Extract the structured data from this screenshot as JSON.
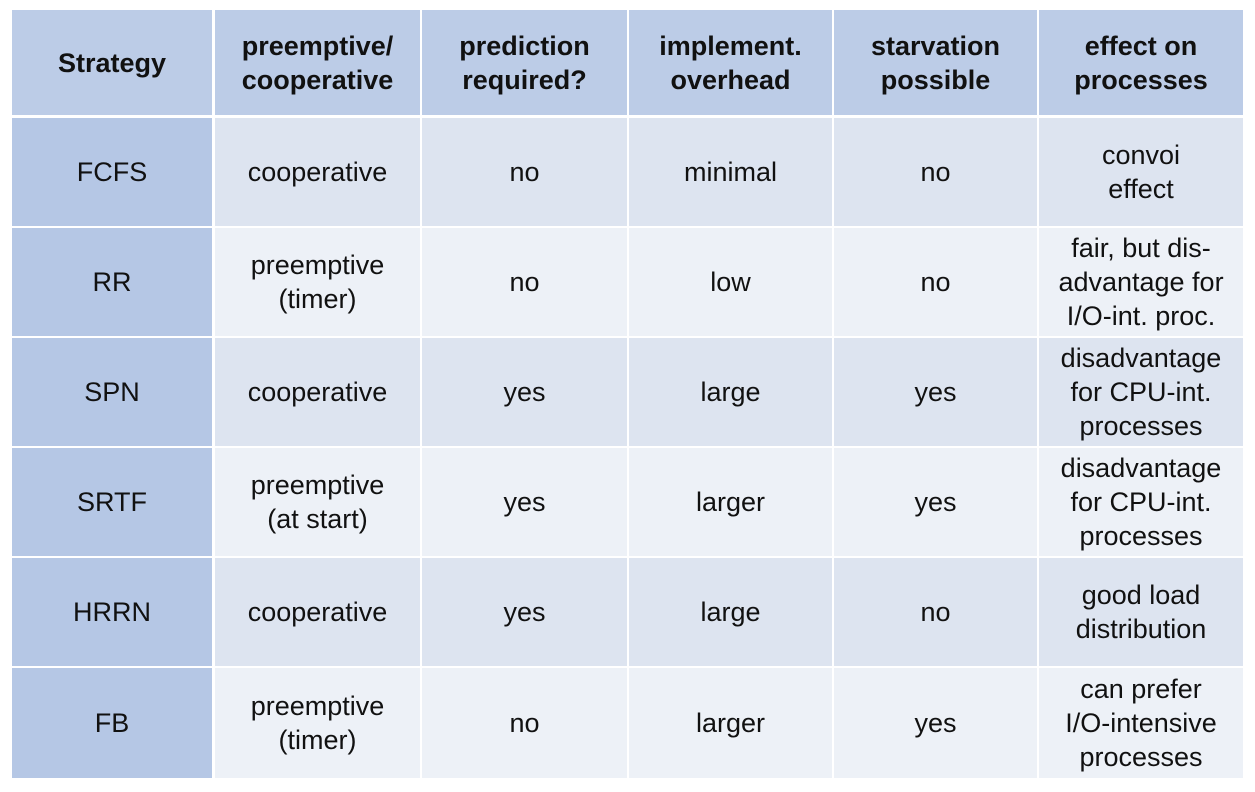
{
  "table": {
    "header": [
      [
        "Strategy"
      ],
      [
        "preemptive/",
        "cooperative"
      ],
      [
        "prediction",
        "required?"
      ],
      [
        "implement.",
        "overhead"
      ],
      [
        "starvation",
        "possible"
      ],
      [
        "effect on",
        "processes"
      ]
    ],
    "rows": [
      [
        [
          "FCFS"
        ],
        [
          "cooperative"
        ],
        [
          "no"
        ],
        [
          "minimal"
        ],
        [
          "no"
        ],
        [
          "convoi",
          "effect"
        ]
      ],
      [
        [
          "RR"
        ],
        [
          "preemptive",
          "(timer)"
        ],
        [
          "no"
        ],
        [
          "low"
        ],
        [
          "no"
        ],
        [
          "fair, but dis-",
          "advantage for",
          "I/O-int. proc."
        ]
      ],
      [
        [
          "SPN"
        ],
        [
          "cooperative"
        ],
        [
          "yes"
        ],
        [
          "large"
        ],
        [
          "yes"
        ],
        [
          "disadvantage",
          "for CPU-int.",
          "processes"
        ]
      ],
      [
        [
          "SRTF"
        ],
        [
          "preemptive",
          "(at start)"
        ],
        [
          "yes"
        ],
        [
          "larger"
        ],
        [
          "yes"
        ],
        [
          "disadvantage",
          "for CPU-int.",
          "processes"
        ]
      ],
      [
        [
          "HRRN"
        ],
        [
          "cooperative"
        ],
        [
          "yes"
        ],
        [
          "large"
        ],
        [
          "no"
        ],
        [
          "good load",
          "distribution"
        ]
      ],
      [
        [
          "FB"
        ],
        [
          "preemptive",
          "(timer)"
        ],
        [
          "no"
        ],
        [
          "larger"
        ],
        [
          "yes"
        ],
        [
          "can prefer",
          "I/O-intensive",
          "processes"
        ]
      ]
    ]
  }
}
